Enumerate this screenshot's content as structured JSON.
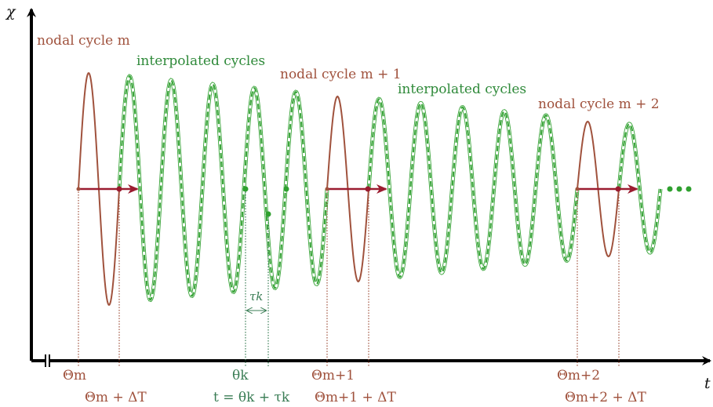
{
  "axes": {
    "y_label": "χ",
    "x_label": "t"
  },
  "labels": {
    "nodal_m": "nodal cycle m",
    "interp_1": "interpolated cycles",
    "nodal_m1": "nodal cycle m + 1",
    "interp_2": "interpolated cycles",
    "nodal_m2": "nodal cycle m + 2"
  },
  "ticks": {
    "theta_m": "Θm",
    "theta_m_dt": "Θm + ΔT",
    "theta_k": "θk",
    "t_eq": "t = θk + τk",
    "theta_m1": "Θm+1",
    "theta_m1_dt": "Θm+1 + ΔT",
    "theta_m2": "Θm+2",
    "theta_m2_dt": "Θm+2 + ΔT",
    "tau_k": "τk"
  },
  "colors": {
    "nodal": "#a0523d",
    "interpolated_light": "#3aa53a",
    "interpolated_dark": "#3a7d55",
    "arrow": "#9b1c30",
    "axis": "#000000"
  }
}
